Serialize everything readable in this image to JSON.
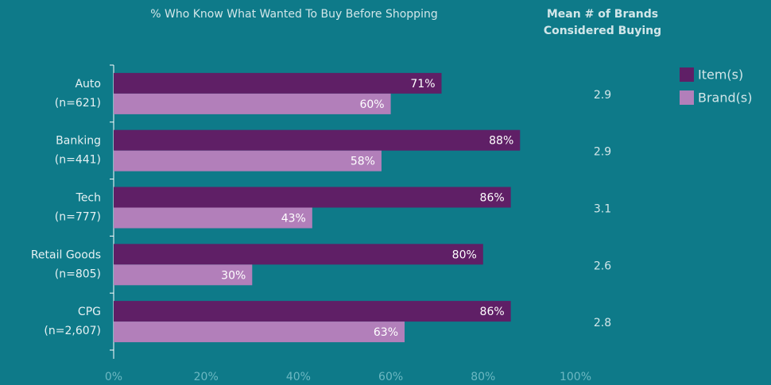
{
  "chart_data": {
    "type": "bar",
    "orientation": "horizontal",
    "title": "% Who Know What Wanted To Buy Before Shopping",
    "categories": [
      "Auto",
      "Banking",
      "Tech",
      "Retail Goods",
      "CPG"
    ],
    "sample_labels": [
      "(n=621)",
      "(n=441)",
      "(n=777)",
      "(n=805)",
      "(n=2,607)"
    ],
    "series": [
      {
        "name": "Item(s)",
        "color": "#5f1f66",
        "values": [
          71,
          88,
          86,
          80,
          86
        ],
        "value_labels": [
          "71%",
          "88%",
          "86%",
          "80%",
          "86%"
        ]
      },
      {
        "name": "Brand(s)",
        "color": "#b27fba",
        "values": [
          60,
          58,
          43,
          30,
          63
        ],
        "value_labels": [
          "60%",
          "58%",
          "43%",
          "30%",
          "63%"
        ]
      }
    ],
    "xlim": [
      0,
      100
    ],
    "xticks": [
      {
        "value": 0,
        "label": "0%"
      },
      {
        "value": 20,
        "label": "20%"
      },
      {
        "value": 40,
        "label": "40%"
      },
      {
        "value": 60,
        "label": "60%"
      },
      {
        "value": 80,
        "label": "80%"
      },
      {
        "value": 100,
        "label": "100%"
      }
    ],
    "mean_title": [
      "Mean # of Brands",
      "Considered Buying"
    ],
    "means": [
      2.9,
      2.9,
      3.1,
      2.6,
      2.8
    ],
    "legend": "top-right"
  }
}
